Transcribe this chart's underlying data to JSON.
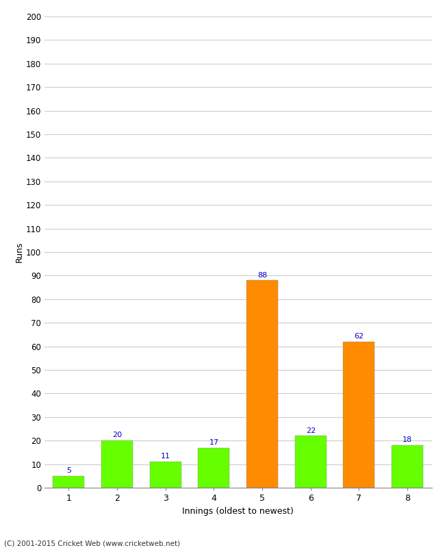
{
  "categories": [
    1,
    2,
    3,
    4,
    5,
    6,
    7,
    8
  ],
  "values": [
    5,
    20,
    11,
    17,
    88,
    22,
    62,
    18
  ],
  "bar_colors": [
    "#66ff00",
    "#66ff00",
    "#66ff00",
    "#66ff00",
    "#ff8c00",
    "#66ff00",
    "#ff8c00",
    "#66ff00"
  ],
  "ylabel": "Runs",
  "xlabel": "Innings (oldest to newest)",
  "ylim": [
    0,
    200
  ],
  "ytick_step": 10,
  "footer": "(C) 2001-2015 Cricket Web (www.cricketweb.net)",
  "label_color": "#0000cc",
  "label_fontsize": 8,
  "grid_color": "#cccccc",
  "background_color": "#ffffff",
  "bar_edge_color": "#888888",
  "bar_edge_width": 0.3,
  "bar_width": 0.65
}
